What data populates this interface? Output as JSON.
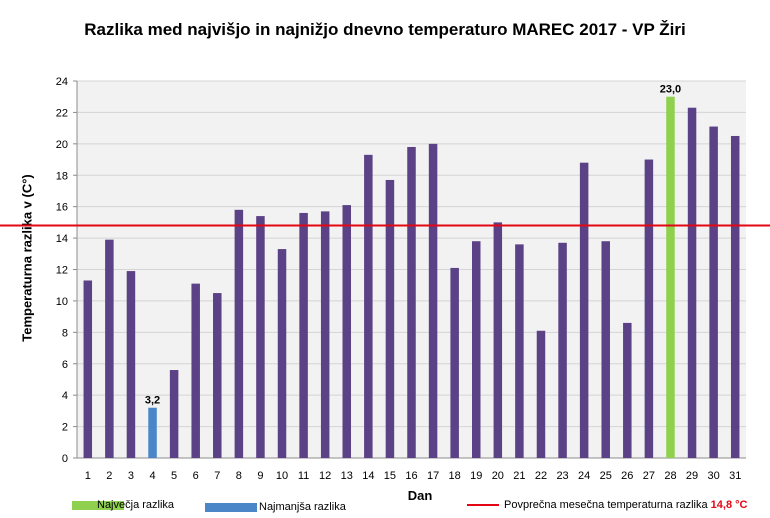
{
  "title": "Razlika med najvišjo in najnižjo dnevno temperaturo MAREC 2017 - VP Žiri",
  "chart_data": {
    "type": "bar",
    "title": "Razlika med najvišjo in najnižjo dnevno temperaturo MAREC 2017 - VP Žiri",
    "xlabel": "Dan",
    "ylabel": "Temperaturna razlika v (C°)",
    "ylim": [
      0,
      24
    ],
    "yticks": [
      0,
      2,
      4,
      6,
      8,
      10,
      12,
      14,
      16,
      18,
      20,
      22,
      24
    ],
    "grid": true,
    "categories": [
      "1",
      "2",
      "3",
      "4",
      "5",
      "6",
      "7",
      "8",
      "9",
      "10",
      "11",
      "12",
      "13",
      "14",
      "15",
      "16",
      "17",
      "18",
      "19",
      "20",
      "21",
      "22",
      "23",
      "24",
      "25",
      "26",
      "27",
      "28",
      "29",
      "30",
      "31"
    ],
    "values": [
      11.3,
      13.9,
      11.9,
      3.2,
      5.6,
      11.1,
      10.5,
      15.8,
      15.4,
      13.3,
      15.6,
      15.7,
      16.1,
      19.3,
      17.7,
      19.8,
      20.0,
      12.1,
      13.8,
      15.0,
      13.6,
      8.1,
      13.7,
      18.8,
      13.8,
      8.6,
      19.0,
      23.0,
      22.3,
      21.1,
      20.5
    ],
    "max_index": 27,
    "min_index": 3,
    "data_labels": [
      {
        "day": "4",
        "text": "3,2"
      },
      {
        "day": "28",
        "text": "23,0"
      }
    ],
    "average_line": 14.8,
    "colors": {
      "bar": "#5b4185",
      "max": "#8fd14f",
      "min": "#4a86c8",
      "average": "#e30613",
      "grid": "#d4d4d4",
      "plot_bg": "#f2f2f2"
    }
  },
  "legend": {
    "max_label": "Največja razlika",
    "min_label": "Najmanjša razlika",
    "avg_label": "Povprečna mesečna temperaturna razlika",
    "avg_value": "14,8 °C"
  }
}
